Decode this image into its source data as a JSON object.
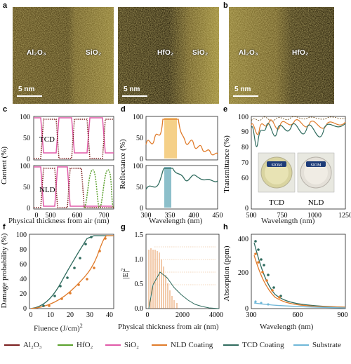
{
  "panels": {
    "a": "a",
    "b": "b",
    "c": "c",
    "d": "d",
    "e": "e",
    "f": "f",
    "g": "g",
    "h": "h"
  },
  "tem": {
    "img1": {
      "left_label": "Al₂O₃",
      "right_label": "SiO₂",
      "scale": "5 nm"
    },
    "img2": {
      "left_label": "HfO₂",
      "right_label": "SiO₂",
      "scale": "5 nm"
    },
    "img3": {
      "left_label": "Al₂O₃",
      "right_label": "HfO₂",
      "scale": "5 nm"
    }
  },
  "colors": {
    "al2o3": "#7a1e1e",
    "hfo2": "#5aa02c",
    "sio2": "#e05aa8",
    "nld": "#e07b2a",
    "tcd": "#2f6b5e",
    "substrate": "#6fb7d8"
  },
  "panel_c": {
    "ylabel": "Content (%)",
    "xlabel": "Physical thickness from air (nm)",
    "tag_top": "TCD",
    "tag_bottom": "NLD",
    "yticks": [
      "0",
      "50",
      "100"
    ],
    "xticks": [
      "0",
      "500",
      "600",
      "700"
    ]
  },
  "panel_d": {
    "ylabel": "Reflectance (%)",
    "xlabel": "Wavelength (nm)",
    "yticks_top": [
      "0",
      "50",
      "100"
    ],
    "yticks_bottom": [
      "0",
      "50",
      "100"
    ],
    "xticks": [
      "300",
      "350",
      "400",
      "450"
    ]
  },
  "panel_e": {
    "ylabel": "Transmittance (%)",
    "xlabel": "Wavelength (nm)",
    "yticks": [
      "0",
      "60",
      "70",
      "80",
      "90",
      "100"
    ],
    "xticks": [
      "500",
      "750",
      "1000",
      "1250"
    ],
    "photo_labels": [
      "TCD",
      "NLD"
    ],
    "logo": "SIOM"
  },
  "panel_f": {
    "ylabel": "Damage probability (%)",
    "xlabel": "Fluence (J/cm)",
    "xlabel_sup": "2",
    "yticks": [
      "0",
      "20",
      "40",
      "60",
      "80",
      "100"
    ],
    "xticks": [
      "0",
      "10",
      "20",
      "30",
      "40"
    ]
  },
  "panel_g": {
    "ylabel": "|E|",
    "ylabel_sup": "2",
    "xlabel": "Physical thickness from air (nm)",
    "yticks": [
      "0.0",
      "0.5",
      "1.0",
      "1.5"
    ],
    "xticks": [
      "0",
      "2000",
      "4000"
    ]
  },
  "panel_h": {
    "ylabel": "Absorption (ppm)",
    "xlabel": "Wavelength (nm)",
    "yticks": [
      "0",
      "200",
      "400"
    ],
    "xticks": [
      "300",
      "600",
      "900"
    ]
  },
  "legend": [
    {
      "label": "Al₂O₃",
      "color": "#7a1e1e"
    },
    {
      "label": "HfO₂",
      "color": "#5aa02c"
    },
    {
      "label": "SiO₂",
      "color": "#e05aa8"
    },
    {
      "label": "NLD Coating",
      "color": "#e07b2a"
    },
    {
      "label": "TCD Coating",
      "color": "#2f6b5e"
    },
    {
      "label": "Substrate",
      "color": "#6fb7d8"
    }
  ]
}
